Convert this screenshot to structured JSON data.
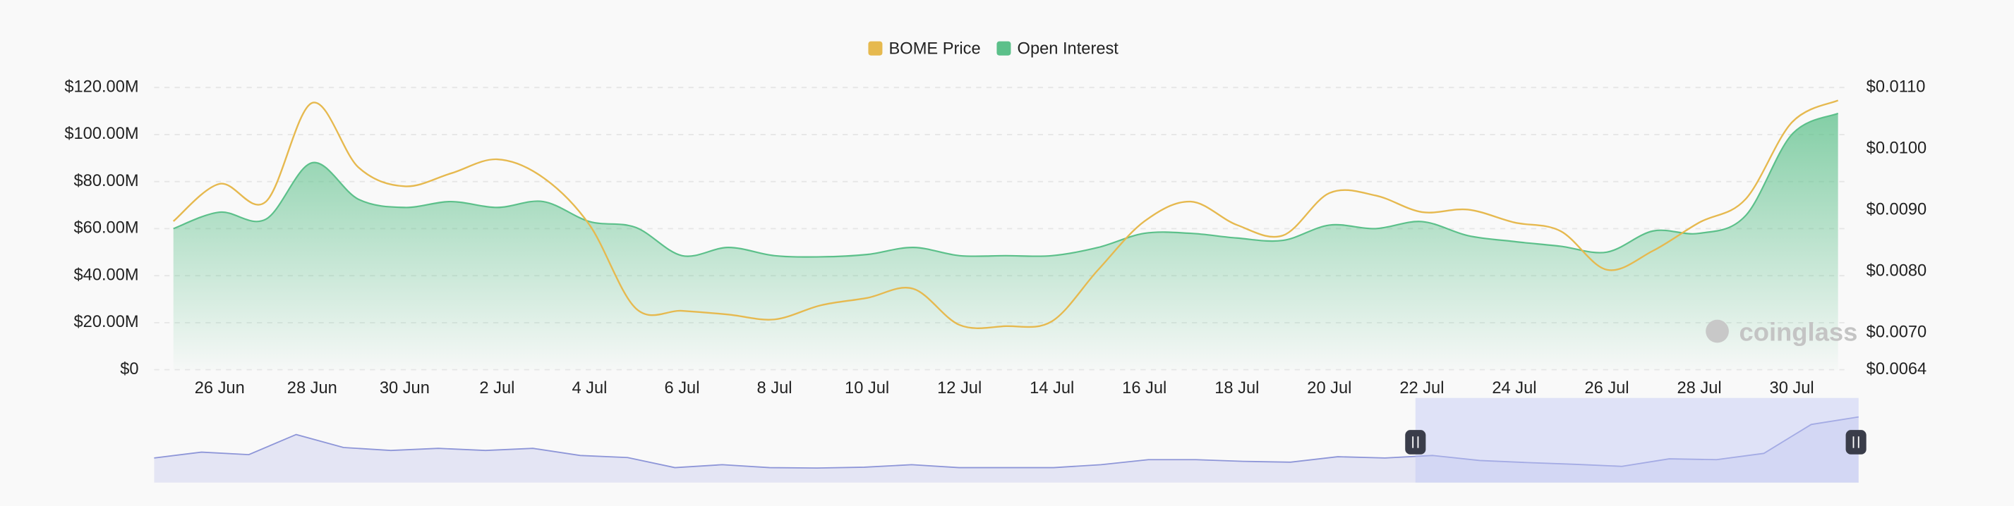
{
  "chart_data": {
    "type": "line",
    "legend_position": "top",
    "watermark": "coinglass",
    "categories": [
      null,
      "26 Jun",
      null,
      "28 Jun",
      null,
      "30 Jun",
      null,
      "2 Jul",
      null,
      "4 Jul",
      null,
      "6 Jul",
      null,
      "8 Jul",
      null,
      "10 Jul",
      null,
      "12 Jul",
      null,
      "14 Jul",
      null,
      "16 Jul",
      null,
      "18 Jul",
      null,
      "20 Jul",
      null,
      "22 Jul",
      null,
      "24 Jul",
      null,
      "26 Jul",
      null,
      "28 Jul",
      null,
      "30 Jul",
      null
    ],
    "series": [
      {
        "name": "BOME Price",
        "color": "#e6b94f",
        "axis": "y2",
        "values": [
          0.00882,
          0.00943,
          0.00914,
          0.01075,
          0.0097,
          0.00939,
          0.0096,
          0.00983,
          0.00953,
          0.00876,
          0.0074,
          0.00736,
          0.0073,
          0.00722,
          0.00745,
          0.00757,
          0.00772,
          0.00713,
          0.00711,
          0.00719,
          0.00803,
          0.00882,
          0.00914,
          0.00876,
          0.00859,
          0.00928,
          0.00924,
          0.00897,
          0.00901,
          0.0088,
          0.00866,
          0.00803,
          0.00834,
          0.0088,
          0.00918,
          0.01043,
          0.01079
        ]
      },
      {
        "name": "Open Interest",
        "color": "#5cc08a",
        "values": [
          60000000,
          67000000,
          64000000,
          88000000,
          72500000,
          69000000,
          71500000,
          69000000,
          71500000,
          63000000,
          60500000,
          48500000,
          52000000,
          48500000,
          48000000,
          49000000,
          52000000,
          48500000,
          48500000,
          48500000,
          52000000,
          58000000,
          58000000,
          56000000,
          55000000,
          61500000,
          60000000,
          63000000,
          57000000,
          54500000,
          52500000,
          50000000,
          59000000,
          58000000,
          65500000,
          100000000,
          109000000
        ]
      }
    ],
    "ylim": [
      0,
      120000000
    ],
    "yticks": [
      {
        "value": 0,
        "label": "$0"
      },
      {
        "value": 20000000,
        "label": "$20.00M"
      },
      {
        "value": 40000000,
        "label": "$40.00M"
      },
      {
        "value": 60000000,
        "label": "$60.00M"
      },
      {
        "value": 80000000,
        "label": "$80.00M"
      },
      {
        "value": 100000000,
        "label": "$100.00M"
      },
      {
        "value": 120000000,
        "label": "$120.00M"
      }
    ],
    "y2lim": [
      0.0064,
      0.011
    ],
    "y2ticks": [
      {
        "value": 0.0064,
        "label": "$0.0064"
      },
      {
        "value": 0.007,
        "label": "$0.0070"
      },
      {
        "value": 0.008,
        "label": "$0.0080"
      },
      {
        "value": 0.009,
        "label": "$0.0090"
      },
      {
        "value": 0.01,
        "label": "$0.0100"
      },
      {
        "value": 0.011,
        "label": "$0.0110"
      }
    ],
    "grid": true
  }
}
